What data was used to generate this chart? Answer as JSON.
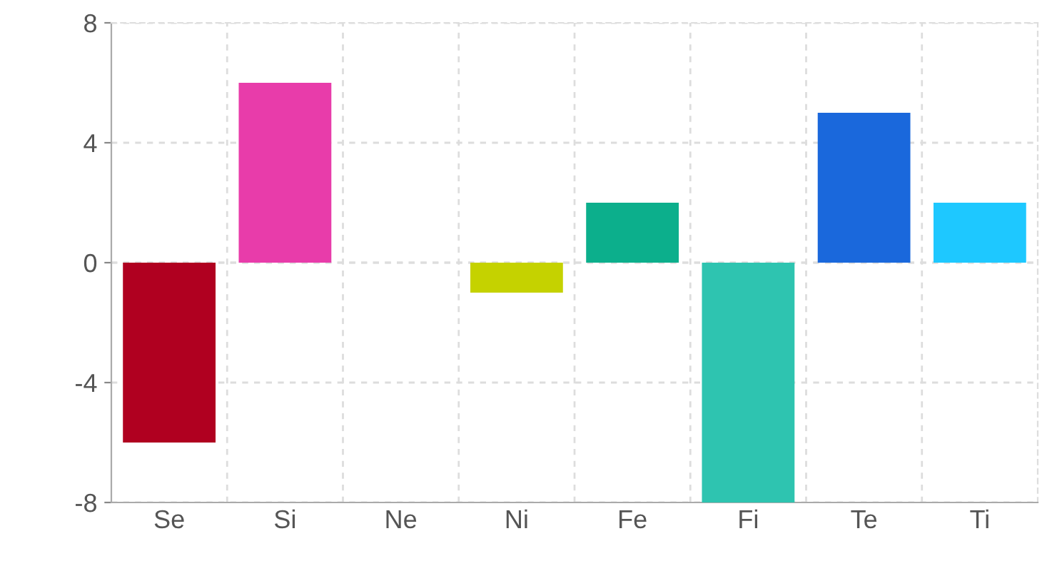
{
  "chart_data": {
    "type": "bar",
    "categories": [
      "Se",
      "Si",
      "Ne",
      "Ni",
      "Fe",
      "Fi",
      "Te",
      "Ti"
    ],
    "values": [
      -6,
      6,
      0,
      -1,
      2,
      -8,
      5,
      2
    ],
    "colors": [
      "#b00020",
      "#e83caa",
      "#7f7f7f",
      "#c5d200",
      "#0caf8c",
      "#2ec4b0",
      "#1a68dc",
      "#1ec8ff"
    ],
    "ylim": [
      -8,
      8
    ],
    "yticks": [
      -8,
      -4,
      0,
      4,
      8
    ],
    "grid": true
  }
}
